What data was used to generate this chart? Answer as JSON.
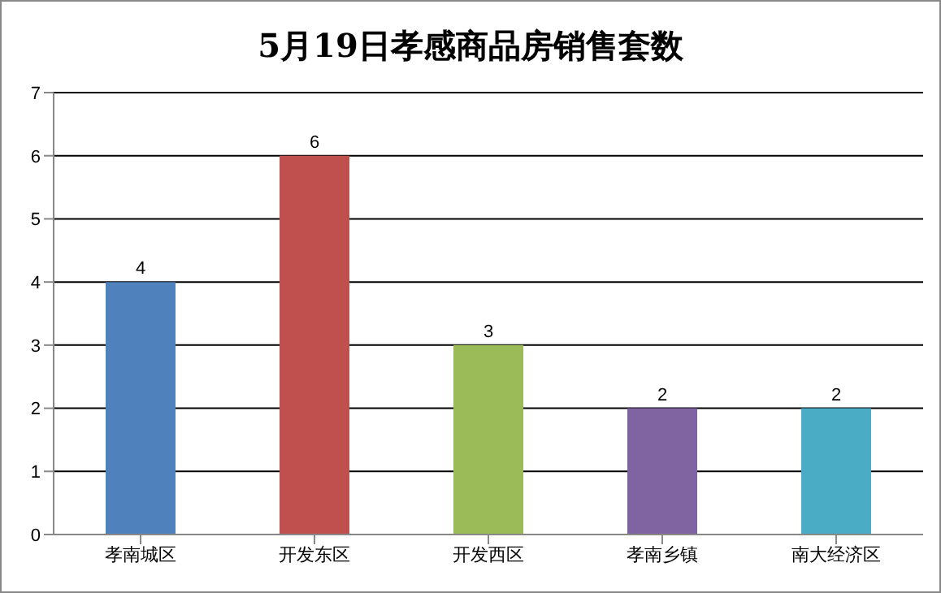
{
  "chart_data": {
    "type": "bar",
    "title": "5月19日孝感商品房销售套数",
    "categories": [
      "孝南城区",
      "开发东区",
      "开发西区",
      "孝南乡镇",
      "南大经济区"
    ],
    "values": [
      4,
      6,
      3,
      2,
      2
    ],
    "colors": [
      "#4f81bd",
      "#c0504d",
      "#9bbb59",
      "#8064a2",
      "#4bacc6"
    ],
    "ylim": [
      0,
      7
    ],
    "yticks": [
      0,
      1,
      2,
      3,
      4,
      5,
      6,
      7
    ],
    "grid": "y",
    "data_labels": true,
    "legend": false
  }
}
